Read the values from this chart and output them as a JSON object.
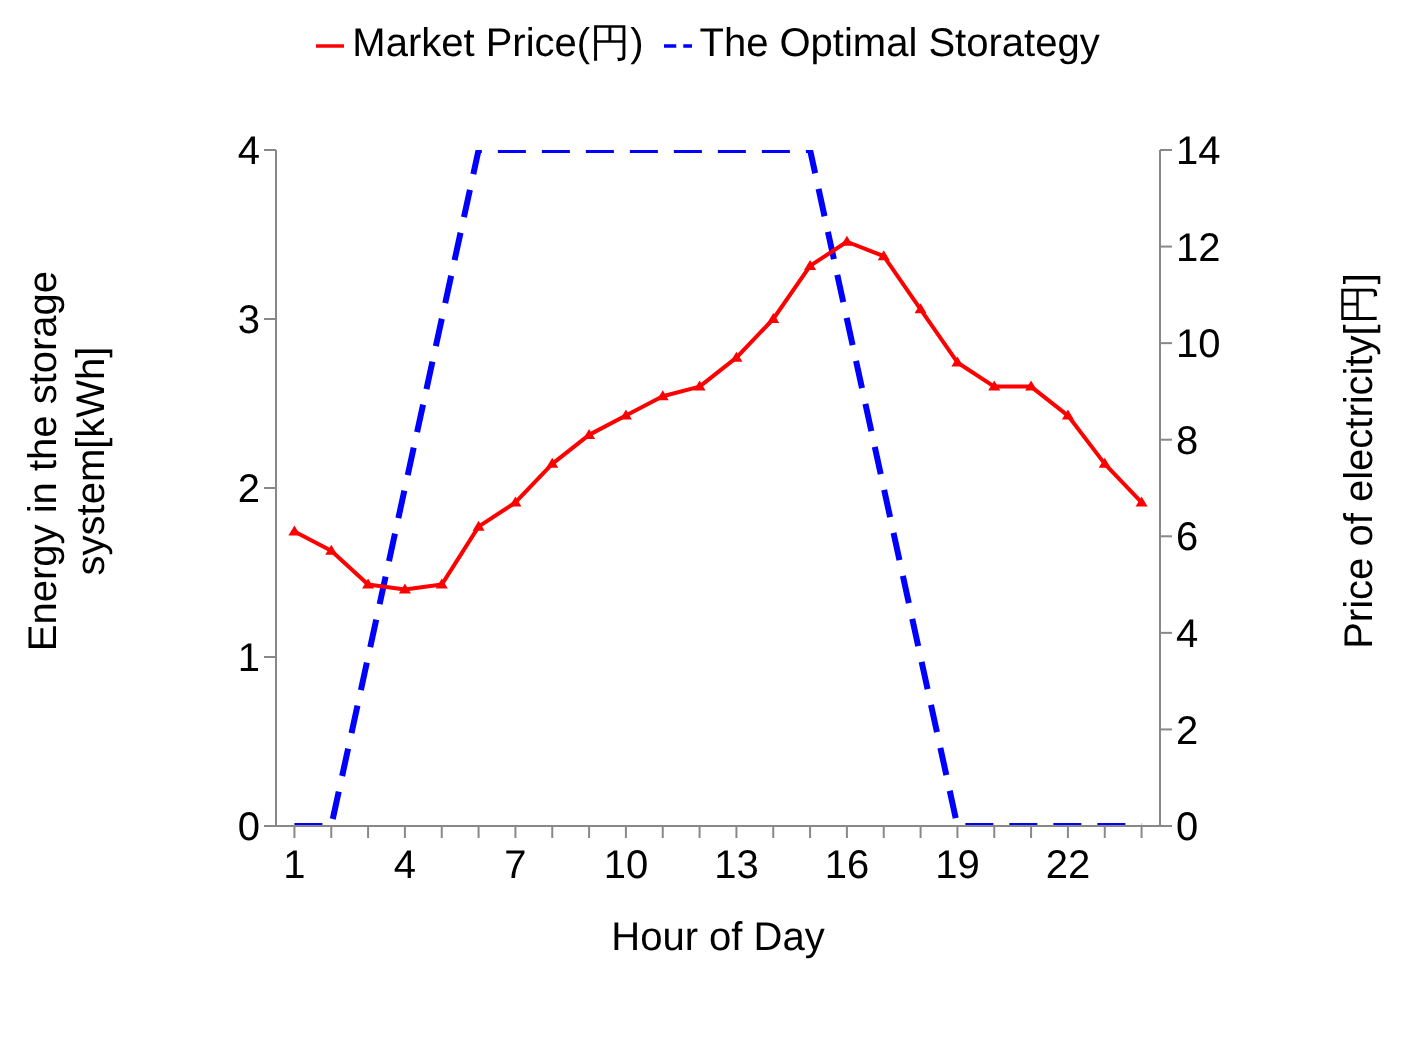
{
  "chart_data": {
    "type": "line",
    "xlabel": "Hour of Day",
    "ylabel": "Energy in the storage system[kWh]",
    "y2label": "Price of electricity[円]",
    "x": [
      1,
      2,
      3,
      4,
      5,
      6,
      7,
      8,
      9,
      10,
      11,
      12,
      13,
      14,
      15,
      16,
      17,
      18,
      19,
      20,
      21,
      22,
      23,
      24
    ],
    "series": [
      {
        "name": "The Optimal Storategy",
        "color": "#0000ff",
        "line_style": "dashed",
        "marker": "none",
        "values": [
          0,
          0,
          1,
          2,
          3,
          4,
          4,
          4,
          4,
          4,
          4,
          4,
          4,
          4,
          4,
          3,
          2,
          1,
          0,
          0,
          0,
          0,
          0,
          0
        ]
      },
      {
        "name": "Market Price(円)",
        "color": "#ff0000",
        "line_style": "solid",
        "marker": "triangle",
        "axis": "y2",
        "values": [
          6.1,
          5.7,
          5.0,
          4.9,
          5.0,
          6.2,
          6.7,
          7.5,
          8.1,
          8.5,
          8.9,
          9.1,
          9.7,
          10.5,
          11.6,
          12.1,
          11.8,
          10.7,
          9.6,
          9.1,
          9.1,
          8.5,
          7.5,
          6.7
        ]
      }
    ],
    "xlim": [
      0.5,
      24.5
    ],
    "xticks": [
      1,
      {
        "value": 2,
        "label": null
      },
      {
        "value": 3,
        "label": null
      },
      4,
      {
        "value": 5,
        "label": null
      },
      {
        "value": 6,
        "label": null
      },
      7,
      {
        "value": 8,
        "label": null
      },
      {
        "value": 9,
        "label": null
      },
      10,
      {
        "value": 11,
        "label": null
      },
      {
        "value": 12,
        "label": null
      },
      13,
      {
        "value": 14,
        "label": null
      },
      {
        "value": 15,
        "label": null
      },
      16,
      {
        "value": 17,
        "label": null
      },
      {
        "value": 18,
        "label": null
      },
      19,
      {
        "value": 20,
        "label": null
      },
      {
        "value": 21,
        "label": null
      },
      22,
      {
        "value": 23,
        "label": null
      },
      {
        "value": 24,
        "label": null
      }
    ],
    "ylim": [
      0,
      4
    ],
    "yticks": [
      0,
      1,
      2,
      3,
      4
    ],
    "y2lim": [
      0,
      14
    ],
    "y2ticks": [
      0,
      2,
      4,
      6,
      8,
      10,
      12,
      14
    ],
    "grid": false,
    "legend": "top"
  }
}
